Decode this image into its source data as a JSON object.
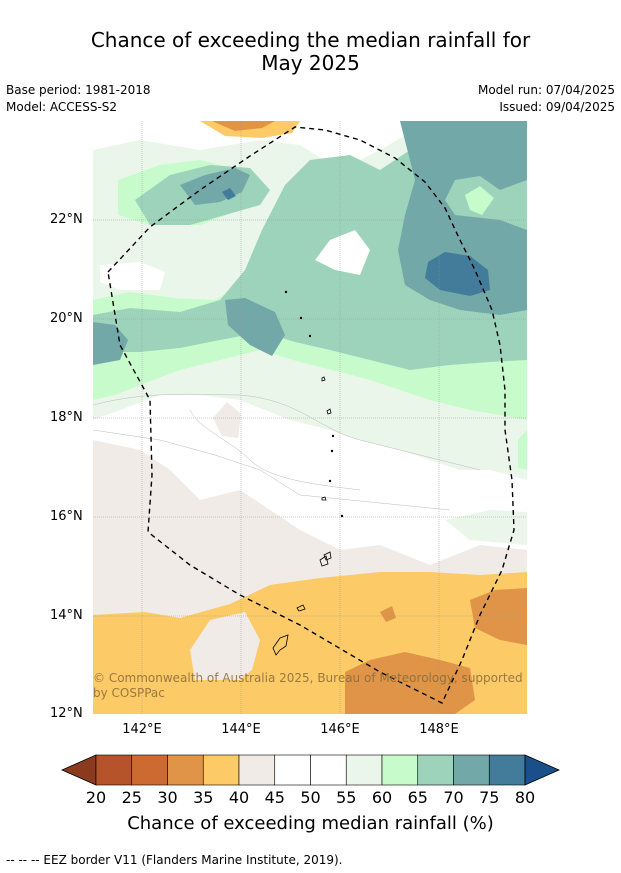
{
  "title_line1": "Chance of exceeding the median rainfall for",
  "title_line2": "May 2025",
  "meta": {
    "base_period": "Base period: 1981-2018",
    "model": "Model: ACCESS-S2",
    "model_run": "Model run: 07/04/2025",
    "issued": "Issued: 09/04/2025"
  },
  "map": {
    "lat_labels": [
      "22°N",
      "20°N",
      "18°N",
      "16°N",
      "14°N",
      "12°N"
    ],
    "lon_labels": [
      "142°E",
      "144°E",
      "146°E",
      "148°E"
    ],
    "copyright": "© Commonwealth of Australia 2025, Bureau of Meteorology, supported by COSPPac"
  },
  "colorbar": {
    "ticks": [
      "20",
      "25",
      "30",
      "35",
      "40",
      "45",
      "50",
      "55",
      "60",
      "65",
      "70",
      "75",
      "80"
    ],
    "colors": [
      "#8b3a1e",
      "#b5532a",
      "#cc6a32",
      "#e09448",
      "#fcca66",
      "#f0ebe6",
      "#ffffff",
      "#ffffff",
      "#eaf6ea",
      "#c8fbcb",
      "#9dd3ba",
      "#72a8a8",
      "#437b9a",
      "#1a4f8a"
    ],
    "title": "Chance of exceeding median rainfall (%)"
  },
  "footnote": "--  --  -- EEZ border V11 (Flanders Marine Institute, 2019)."
}
